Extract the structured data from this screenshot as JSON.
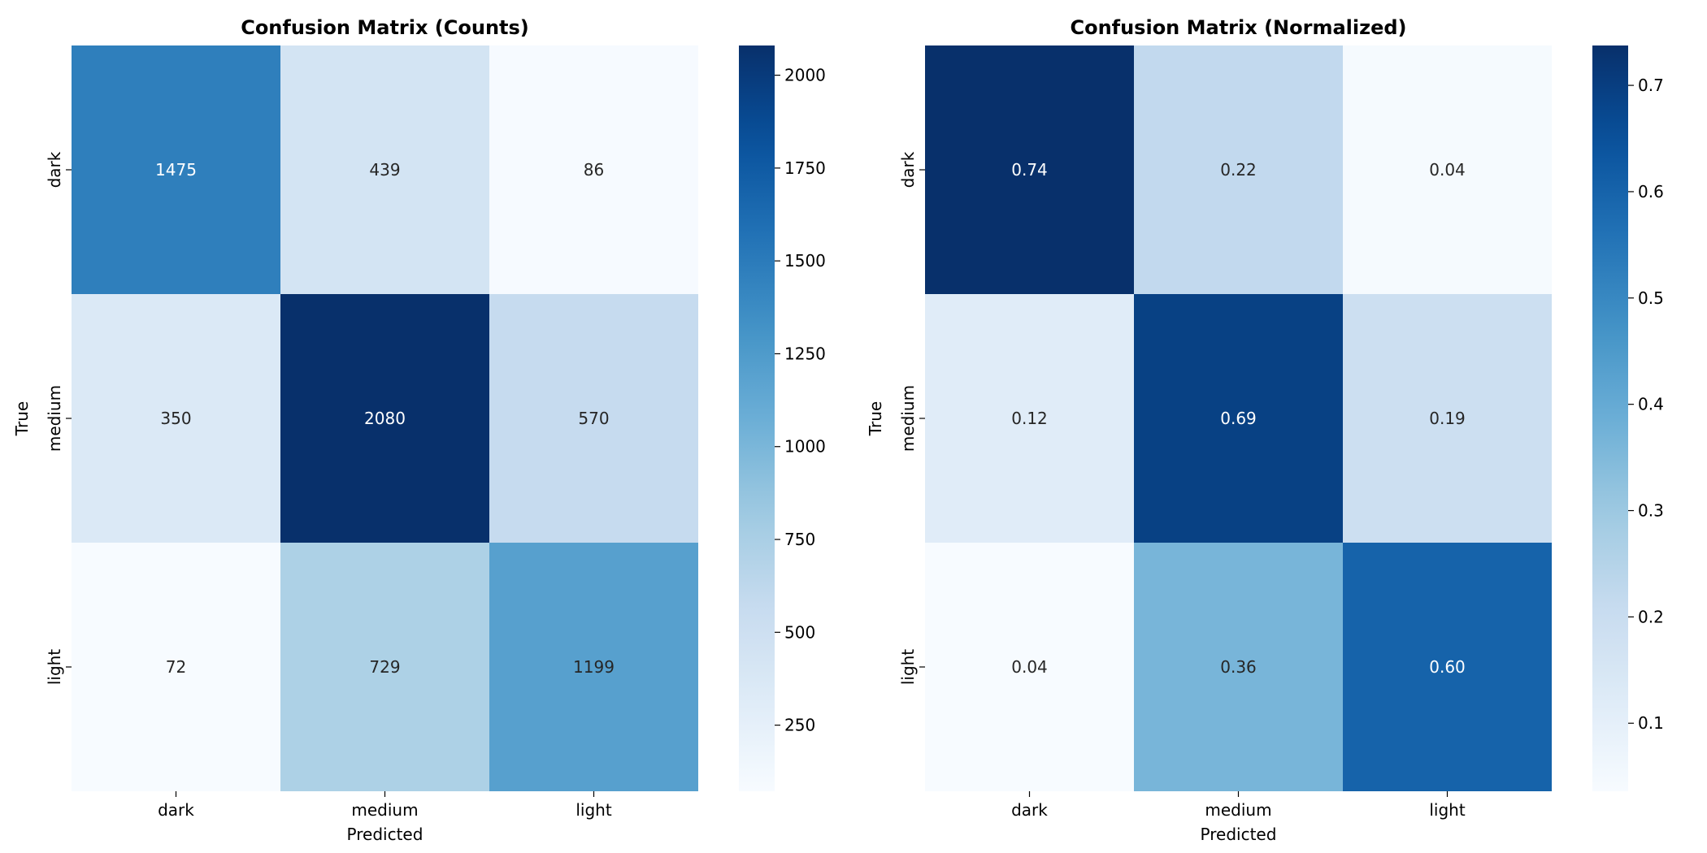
{
  "chart_data": [
    {
      "type": "heatmap",
      "title": "Confusion Matrix (Counts)",
      "xlabel": "Predicted",
      "ylabel": "True",
      "x_categories": [
        "dark",
        "medium",
        "light"
      ],
      "y_categories": [
        "dark",
        "medium",
        "light"
      ],
      "values": [
        [
          1475,
          439,
          86
        ],
        [
          350,
          2080,
          570
        ],
        [
          72,
          729,
          1199
        ]
      ],
      "cell_labels": [
        [
          "1475",
          "439",
          "86"
        ],
        [
          "350",
          "2080",
          "570"
        ],
        [
          "72",
          "729",
          "1199"
        ]
      ],
      "colormap": "Blues",
      "color_range": [
        72,
        2080
      ],
      "colorbar_ticks": [
        250,
        500,
        750,
        1000,
        1250,
        1500,
        1750,
        2000
      ],
      "colorbar_tick_labels": [
        "250",
        "500",
        "750",
        "1000",
        "1250",
        "1500",
        "1750",
        "2000"
      ]
    },
    {
      "type": "heatmap",
      "title": "Confusion Matrix (Normalized)",
      "xlabel": "Predicted",
      "ylabel": "True",
      "x_categories": [
        "dark",
        "medium",
        "light"
      ],
      "y_categories": [
        "dark",
        "medium",
        "light"
      ],
      "values": [
        [
          0.7375,
          0.2195,
          0.043
        ],
        [
          0.1167,
          0.6933,
          0.19
        ],
        [
          0.036,
          0.3645,
          0.5995
        ]
      ],
      "cell_labels": [
        [
          "0.74",
          "0.22",
          "0.04"
        ],
        [
          "0.12",
          "0.69",
          "0.19"
        ],
        [
          "0.04",
          "0.36",
          "0.60"
        ]
      ],
      "colormap": "Blues",
      "color_range": [
        0.036,
        0.7375
      ],
      "colorbar_ticks": [
        0.1,
        0.2,
        0.3,
        0.4,
        0.5,
        0.6,
        0.7
      ],
      "colorbar_tick_labels": [
        "0.1",
        "0.2",
        "0.3",
        "0.4",
        "0.5",
        "0.6",
        "0.7"
      ]
    }
  ]
}
